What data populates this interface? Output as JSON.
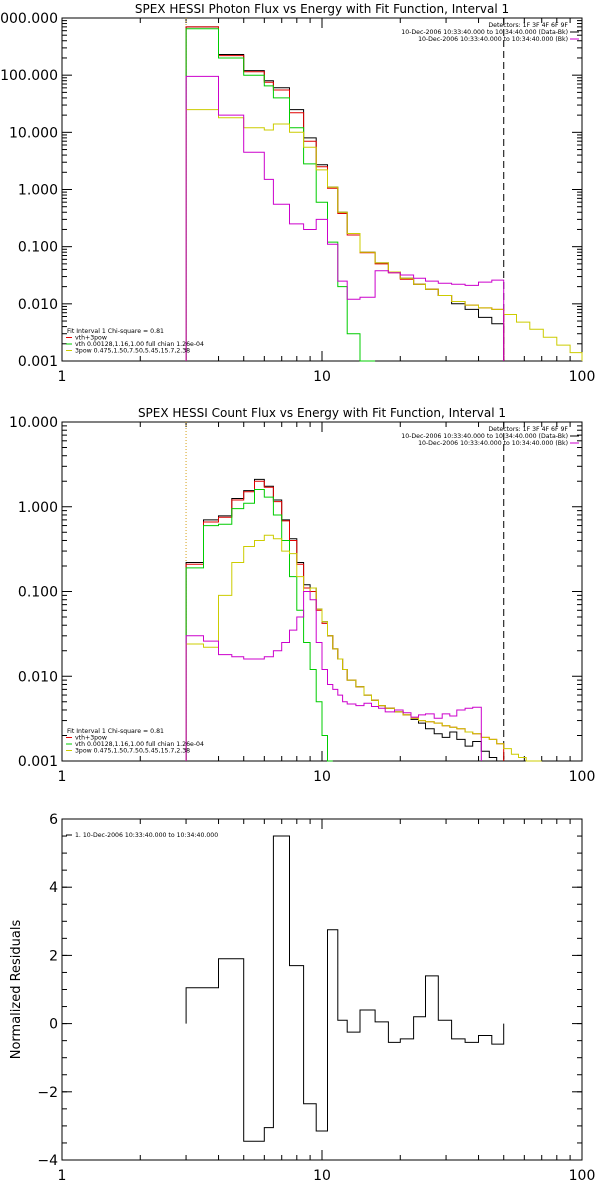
{
  "chart_data": [
    {
      "type": "line",
      "title": "SPEX HESSI Photon Flux vs Energy with Fit Function, Interval 1",
      "xscale": "log",
      "yscale": "log",
      "xlim": [
        1,
        100
      ],
      "ylim": [
        0.001,
        1000
      ],
      "xticks": [
        {
          "value": 1,
          "label": "1"
        },
        {
          "value": 10,
          "label": "10"
        },
        {
          "value": 100,
          "label": "100"
        }
      ],
      "yticks": [
        {
          "value": 0.001,
          "label": "0.001"
        },
        {
          "value": 0.01,
          "label": "0.010"
        },
        {
          "value": 0.1,
          "label": "0.100"
        },
        {
          "value": 1,
          "label": "1.000"
        },
        {
          "value": 10,
          "label": "10.000"
        },
        {
          "value": 100,
          "label": "100.000"
        },
        {
          "value": 1000,
          "label": "1000.000"
        }
      ],
      "header_text": [
        "Detectors: 1F 3F 4F 6F 9F",
        "10-Dec-2006 10:33:40.000 to 10:34:40.000 (Data-Bk)",
        "10-Dec-2006 10:33:40.000 to 10:34:40.000 (Bk)"
      ],
      "header_colors": [
        "",
        "#000000",
        "#cc00cc"
      ],
      "legend_text": [
        "Fit Interval 1    Chi-square = 0.81",
        "vth+3pow",
        "vth 0.00128,1.16,1.00  full chian 1.26e-04",
        "3pow 0.475,1.50,7.50,5.45,15.7,2.38"
      ],
      "legend_colors": [
        "",
        "#e00000",
        "#00cc00",
        "#cccc00"
      ],
      "vlines": [
        {
          "x": 3,
          "style": "dotted",
          "color": "#d4a017"
        },
        {
          "x": 50,
          "style": "dashed",
          "color": "#000000"
        }
      ],
      "edges": [
        3,
        4,
        5,
        6,
        6.5,
        7.5,
        8.5,
        9.5,
        10.5,
        11.5,
        12.5,
        14,
        16,
        18,
        20,
        22.5,
        25,
        28,
        31.5,
        35.5,
        40,
        45,
        50,
        56,
        63,
        71,
        80,
        90,
        100
      ],
      "series": [
        {
          "color": "#000000",
          "values": [
            700,
            230,
            120,
            80,
            60,
            25,
            8,
            2.7,
            1.1,
            0.4,
            0.17,
            0.08,
            0.052,
            0.036,
            0.028,
            0.022,
            0.018,
            0.014,
            0.01,
            0.008,
            0.0058,
            0.0045
          ]
        },
        {
          "color": "#e00000",
          "values": [
            700,
            220,
            115,
            75,
            55,
            22,
            7,
            2.5,
            1.05,
            0.38,
            0.16,
            0.078,
            0.05,
            0.035,
            0.027,
            0.022,
            0.018,
            0.014,
            0.011,
            0.0095,
            0.0085,
            0.008
          ]
        },
        {
          "color": "#00cc00",
          "values": [
            650,
            200,
            100,
            65,
            40,
            12,
            2.8,
            0.6,
            0.12,
            0.02,
            0.003,
            0.0005
          ]
        },
        {
          "color": "#cccc00",
          "values": [
            25,
            18,
            12,
            11,
            14,
            10,
            5.5,
            2.2,
            1.1,
            0.4,
            0.17,
            0.08,
            0.052,
            0.036,
            0.028,
            0.022,
            0.018,
            0.014,
            0.011,
            0.0095,
            0.0085,
            0.008,
            0.0065,
            0.0048,
            0.0036,
            0.0026,
            0.0019,
            0.0014
          ]
        },
        {
          "color": "#cc00cc",
          "values": [
            95,
            20,
            4.5,
            1.5,
            0.55,
            0.25,
            0.2,
            0.3,
            0.11,
            0.025,
            0.012,
            0.013,
            0.038,
            0.035,
            0.032,
            0.028,
            0.025,
            0.023,
            0.022,
            0.021,
            0.024,
            0.026
          ]
        }
      ]
    },
    {
      "type": "line",
      "title": "SPEX HESSI Count Flux vs Energy with Fit Function, Interval 1",
      "xscale": "log",
      "yscale": "log",
      "xlim": [
        1,
        100
      ],
      "ylim": [
        0.001,
        10
      ],
      "xticks": [
        {
          "value": 1,
          "label": "1"
        },
        {
          "value": 10,
          "label": "10"
        },
        {
          "value": 100,
          "label": "100"
        }
      ],
      "yticks": [
        {
          "value": 0.001,
          "label": "0.001"
        },
        {
          "value": 0.01,
          "label": "0.010"
        },
        {
          "value": 0.1,
          "label": "0.100"
        },
        {
          "value": 1,
          "label": "1.000"
        },
        {
          "value": 10,
          "label": "10.000"
        }
      ],
      "header_text": [
        "Detectors: 1F 3F 4F 6F 9F",
        "10-Dec-2006 10:33:40.000 to 10:34:40.000 (Data-Bk)",
        "10-Dec-2006 10:33:40.000 to 10:34:40.000 (Bk)"
      ],
      "header_colors": [
        "",
        "#000000",
        "#cc00cc"
      ],
      "legend_text": [
        "Fit Interval 1    Chi-square = 0.81",
        "vth+3pow",
        "vth 0.00128,1.16,1.00  full chian 1.26e-04",
        "3pow 0.475,1.50,7.50,5.45,15.7,2.38"
      ],
      "legend_colors": [
        "",
        "#e00000",
        "#00cc00",
        "#cccc00"
      ],
      "vlines": [
        {
          "x": 3,
          "style": "dotted",
          "color": "#d4a017"
        },
        {
          "x": 50,
          "style": "dashed",
          "color": "#000000"
        }
      ],
      "edges": [
        3,
        3.5,
        4,
        4.5,
        5,
        5.5,
        6,
        6.5,
        7,
        7.5,
        8,
        8.5,
        9,
        9.5,
        10,
        10.5,
        11,
        11.5,
        12,
        12.5,
        13.5,
        14.5,
        15.5,
        16.5,
        17.5,
        19,
        20.5,
        22,
        23.5,
        25,
        27,
        29,
        31,
        33,
        35.5,
        38,
        41,
        44,
        47,
        50,
        53.5,
        57,
        61,
        65,
        70
      ],
      "series": [
        {
          "color": "#000000",
          "values": [
            0.22,
            0.7,
            0.78,
            1.25,
            1.55,
            2.1,
            1.75,
            1.2,
            0.7,
            0.42,
            0.22,
            0.12,
            0.11,
            0.062,
            0.044,
            0.03,
            0.021,
            0.016,
            0.012,
            0.009,
            0.0075,
            0.006,
            0.0052,
            0.0045,
            0.0042,
            0.0038,
            0.0035,
            0.0031,
            0.0028,
            0.0024,
            0.0021,
            0.0019,
            0.0022,
            0.0018,
            0.0015,
            0.0017,
            0.0013,
            0.0011,
            0.0009
          ]
        },
        {
          "color": "#e00000",
          "values": [
            0.21,
            0.66,
            0.75,
            1.2,
            1.5,
            2.0,
            1.7,
            1.15,
            0.68,
            0.4,
            0.21,
            0.11,
            0.1,
            0.06,
            0.042,
            0.03,
            0.021,
            0.016,
            0.012,
            0.009,
            0.0075,
            0.006,
            0.0052,
            0.0045,
            0.0042,
            0.0038,
            0.0035,
            0.0032,
            0.003,
            0.0029,
            0.0028,
            0.0026,
            0.0025,
            0.0024,
            0.0022,
            0.0021,
            0.0019,
            0.0018,
            0.0016
          ]
        },
        {
          "color": "#00cc00",
          "values": [
            0.19,
            0.6,
            0.62,
            0.95,
            1.1,
            1.6,
            1.3,
            0.8,
            0.4,
            0.15,
            0.06,
            0.025,
            0.012,
            0.005,
            0.002,
            0.0008
          ]
        },
        {
          "color": "#cccc00",
          "values": [
            0.024,
            0.022,
            0.09,
            0.22,
            0.34,
            0.4,
            0.46,
            0.42,
            0.3,
            0.28,
            0.15,
            0.1,
            0.11,
            0.062,
            0.044,
            0.03,
            0.021,
            0.016,
            0.012,
            0.009,
            0.0075,
            0.006,
            0.0052,
            0.0045,
            0.0042,
            0.0038,
            0.0035,
            0.0032,
            0.003,
            0.0029,
            0.0028,
            0.0026,
            0.0025,
            0.0024,
            0.0022,
            0.0021,
            0.0019,
            0.0018,
            0.0016,
            0.0014,
            0.0012,
            0.0011,
            0.001,
            0.0009
          ]
        },
        {
          "color": "#cc00cc",
          "values": [
            0.03,
            0.026,
            0.018,
            0.017,
            0.016,
            0.016,
            0.017,
            0.02,
            0.025,
            0.035,
            0.05,
            0.1,
            0.08,
            0.025,
            0.012,
            0.008,
            0.007,
            0.006,
            0.005,
            0.0047,
            0.0045,
            0.0048,
            0.0044,
            0.0042,
            0.0038,
            0.004,
            0.0037,
            0.0033,
            0.0035,
            0.0036,
            0.0032,
            0.0036,
            0.0034,
            0.004,
            0.0042,
            0.0043
          ]
        }
      ]
    },
    {
      "type": "line",
      "title": "",
      "xscale": "log",
      "yscale": "linear",
      "xlim": [
        1,
        100
      ],
      "ylim": [
        -4,
        6
      ],
      "ylabel": "Normalized Residuals",
      "xticks": [
        {
          "value": 1,
          "label": "1"
        },
        {
          "value": 10,
          "label": "10"
        },
        {
          "value": 100,
          "label": "100"
        }
      ],
      "yticks": [
        {
          "value": -4,
          "label": "−4"
        },
        {
          "value": -2,
          "label": "−2"
        },
        {
          "value": 0,
          "label": "0"
        },
        {
          "value": 2,
          "label": "2"
        },
        {
          "value": 4,
          "label": "4"
        },
        {
          "value": 6,
          "label": "6"
        }
      ],
      "legend_text": [
        "1. 10-Dec-2006 10:33:40.000 to 10:34:40.000"
      ],
      "legend_colors": [
        "#000000"
      ],
      "edges": [
        3,
        4,
        5,
        6,
        6.5,
        7.5,
        8.5,
        9.5,
        10.5,
        11.5,
        12.5,
        14,
        16,
        18,
        20,
        22.5,
        25,
        28,
        31.5,
        35.5,
        40,
        45,
        50
      ],
      "series": [
        {
          "color": "#000000",
          "values": [
            1.05,
            1.9,
            -3.45,
            -3.05,
            5.5,
            1.7,
            -2.35,
            -3.15,
            2.75,
            0.1,
            -0.25,
            0.4,
            0.05,
            -0.55,
            -0.45,
            0.2,
            1.4,
            0.1,
            -0.45,
            -0.55,
            -0.35,
            -0.6
          ]
        }
      ]
    }
  ]
}
